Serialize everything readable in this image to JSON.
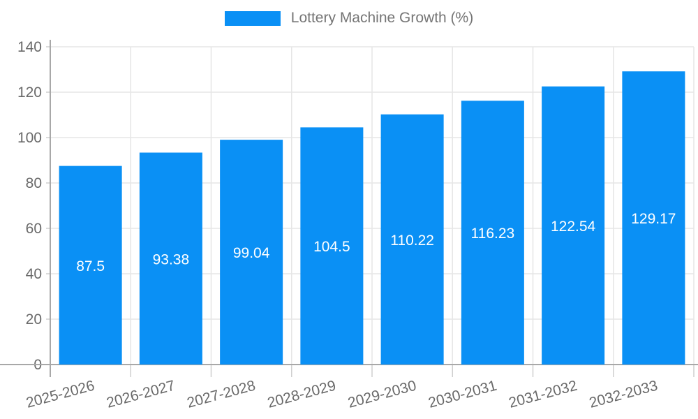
{
  "legend": {
    "label": "Lottery Machine Growth (%)"
  },
  "chart_data": {
    "type": "bar",
    "title": "",
    "xlabel": "",
    "ylabel": "",
    "categories": [
      "2025-2026",
      "2026-2027",
      "2027-2028",
      "2028-2029",
      "2029-2030",
      "2030-2031",
      "2031-2032",
      "2032-2033"
    ],
    "series": [
      {
        "name": "Lottery Machine Growth (%)",
        "values": [
          87.5,
          93.38,
          99.04,
          104.5,
          110.22,
          116.23,
          122.54,
          129.17
        ],
        "value_labels": [
          "87.5",
          "93.38",
          "99.04",
          "104.5",
          "110.22",
          "116.23",
          "122.54",
          "129.17"
        ]
      }
    ],
    "ylim": [
      0,
      140
    ],
    "ytick_step": 20,
    "ytick_labels": [
      "0",
      "20",
      "40",
      "60",
      "80",
      "100",
      "120",
      "140"
    ],
    "grid": "both",
    "legend_position": "top-center",
    "colors": {
      "bar": "#0a90f5",
      "bar_label_text": "#ffffff",
      "grid_line": "#e6e6e6",
      "axis_line": "#a8a8a8",
      "tick_mark": "#cfcfcf",
      "tick_label_text": "#696969",
      "legend_text": "#757575"
    }
  }
}
